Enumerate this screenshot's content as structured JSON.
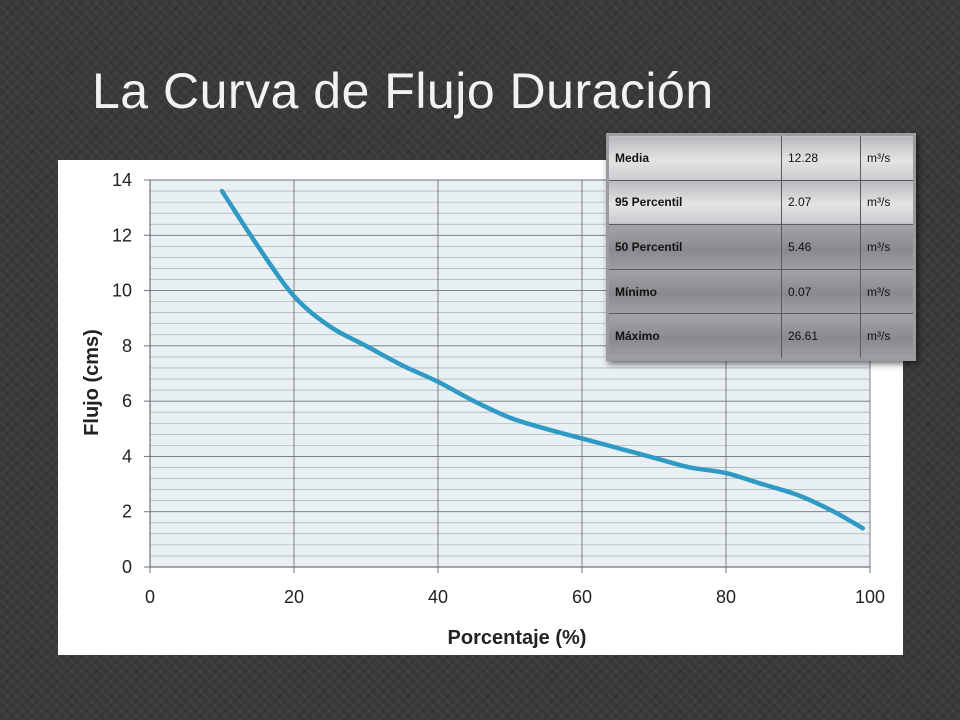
{
  "slide": {
    "title": "La Curva de Flujo Duración"
  },
  "chart_data": {
    "type": "line",
    "title": "",
    "xlabel": "Porcentaje (%)",
    "ylabel": "Flujo (cms)",
    "xlim": [
      0,
      100
    ],
    "ylim": [
      0,
      14
    ],
    "xticks": [
      "0",
      "20",
      "40",
      "60",
      "80",
      "100"
    ],
    "yticks": [
      "0",
      "2",
      "4",
      "6",
      "8",
      "10",
      "12",
      "14"
    ],
    "grid": true,
    "series": [
      {
        "color": "#2f9ac4",
        "x": [
          10,
          15,
          20,
          25,
          30,
          35,
          40,
          45,
          50,
          55,
          60,
          65,
          70,
          75,
          80,
          85,
          90,
          95,
          99
        ],
        "y": [
          13.6,
          11.6,
          9.8,
          8.7,
          8.0,
          7.3,
          6.7,
          6.0,
          5.4,
          5.0,
          4.65,
          4.3,
          3.95,
          3.6,
          3.4,
          3.0,
          2.6,
          2.0,
          1.4
        ]
      }
    ]
  },
  "stats_table": {
    "rows": [
      {
        "label": "Media",
        "value": "12.28",
        "unit": "m³/s"
      },
      {
        "label": "95 Percentil",
        "value": "2.07",
        "unit": "m³/s"
      },
      {
        "label": "50 Percentil",
        "value": "5.46",
        "unit": "m³/s"
      },
      {
        "label": "Mínimo",
        "value": "0.07",
        "unit": "m³/s"
      },
      {
        "label": "Máximo",
        "value": "26.61",
        "unit": "m³/s"
      }
    ]
  }
}
